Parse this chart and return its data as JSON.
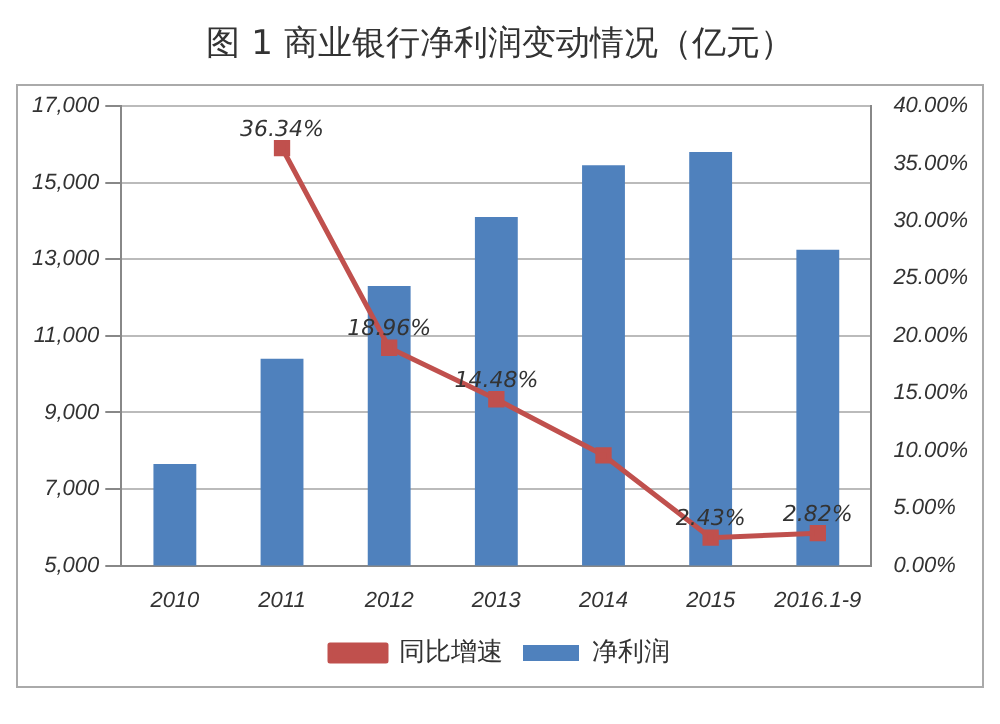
{
  "chart_data": {
    "type": "bar",
    "title": "图 1  商业银行净利润变动情况（亿元）",
    "categories": [
      "2010",
      "2011",
      "2012",
      "2013",
      "2014",
      "2015",
      "2016.1-9"
    ],
    "series": [
      {
        "name": "净利润",
        "color": "#4f81bd",
        "values": [
          7650,
          10400,
          12300,
          14100,
          15450,
          15800,
          13250
        ]
      },
      {
        "name": "同比增速",
        "type": "line",
        "axis": "y2",
        "color": "#c0504d",
        "marker": "square",
        "values": [
          null,
          36.34,
          18.96,
          14.48,
          9.6,
          2.43,
          2.82
        ],
        "value_labels": [
          null,
          "36.34%",
          "18.96%",
          "14.48%",
          null,
          "2.43%",
          "2.82%"
        ]
      }
    ],
    "ylim": [
      5000,
      17000
    ],
    "yticks": [
      {
        "value": 5000,
        "label": "5,000"
      },
      {
        "value": 7000,
        "label": "7,000"
      },
      {
        "value": 9000,
        "label": "9,000"
      },
      {
        "value": 11000,
        "label": "11,000"
      },
      {
        "value": 13000,
        "label": "13,000"
      },
      {
        "value": 15000,
        "label": "15,000"
      },
      {
        "value": 17000,
        "label": "17,000"
      }
    ],
    "y2lim": [
      0,
      40
    ],
    "y2ticks": [
      {
        "value": 0,
        "label": "0.00%"
      },
      {
        "value": 5,
        "label": "5.00%"
      },
      {
        "value": 10,
        "label": "10.00%"
      },
      {
        "value": 15,
        "label": "15.00%"
      },
      {
        "value": 20,
        "label": "20.00%"
      },
      {
        "value": 25,
        "label": "25.00%"
      },
      {
        "value": 30,
        "label": "30.00%"
      },
      {
        "value": 35,
        "label": "35.00%"
      },
      {
        "value": 40,
        "label": "40.00%"
      }
    ],
    "grid": "y",
    "legend": "bottom"
  }
}
